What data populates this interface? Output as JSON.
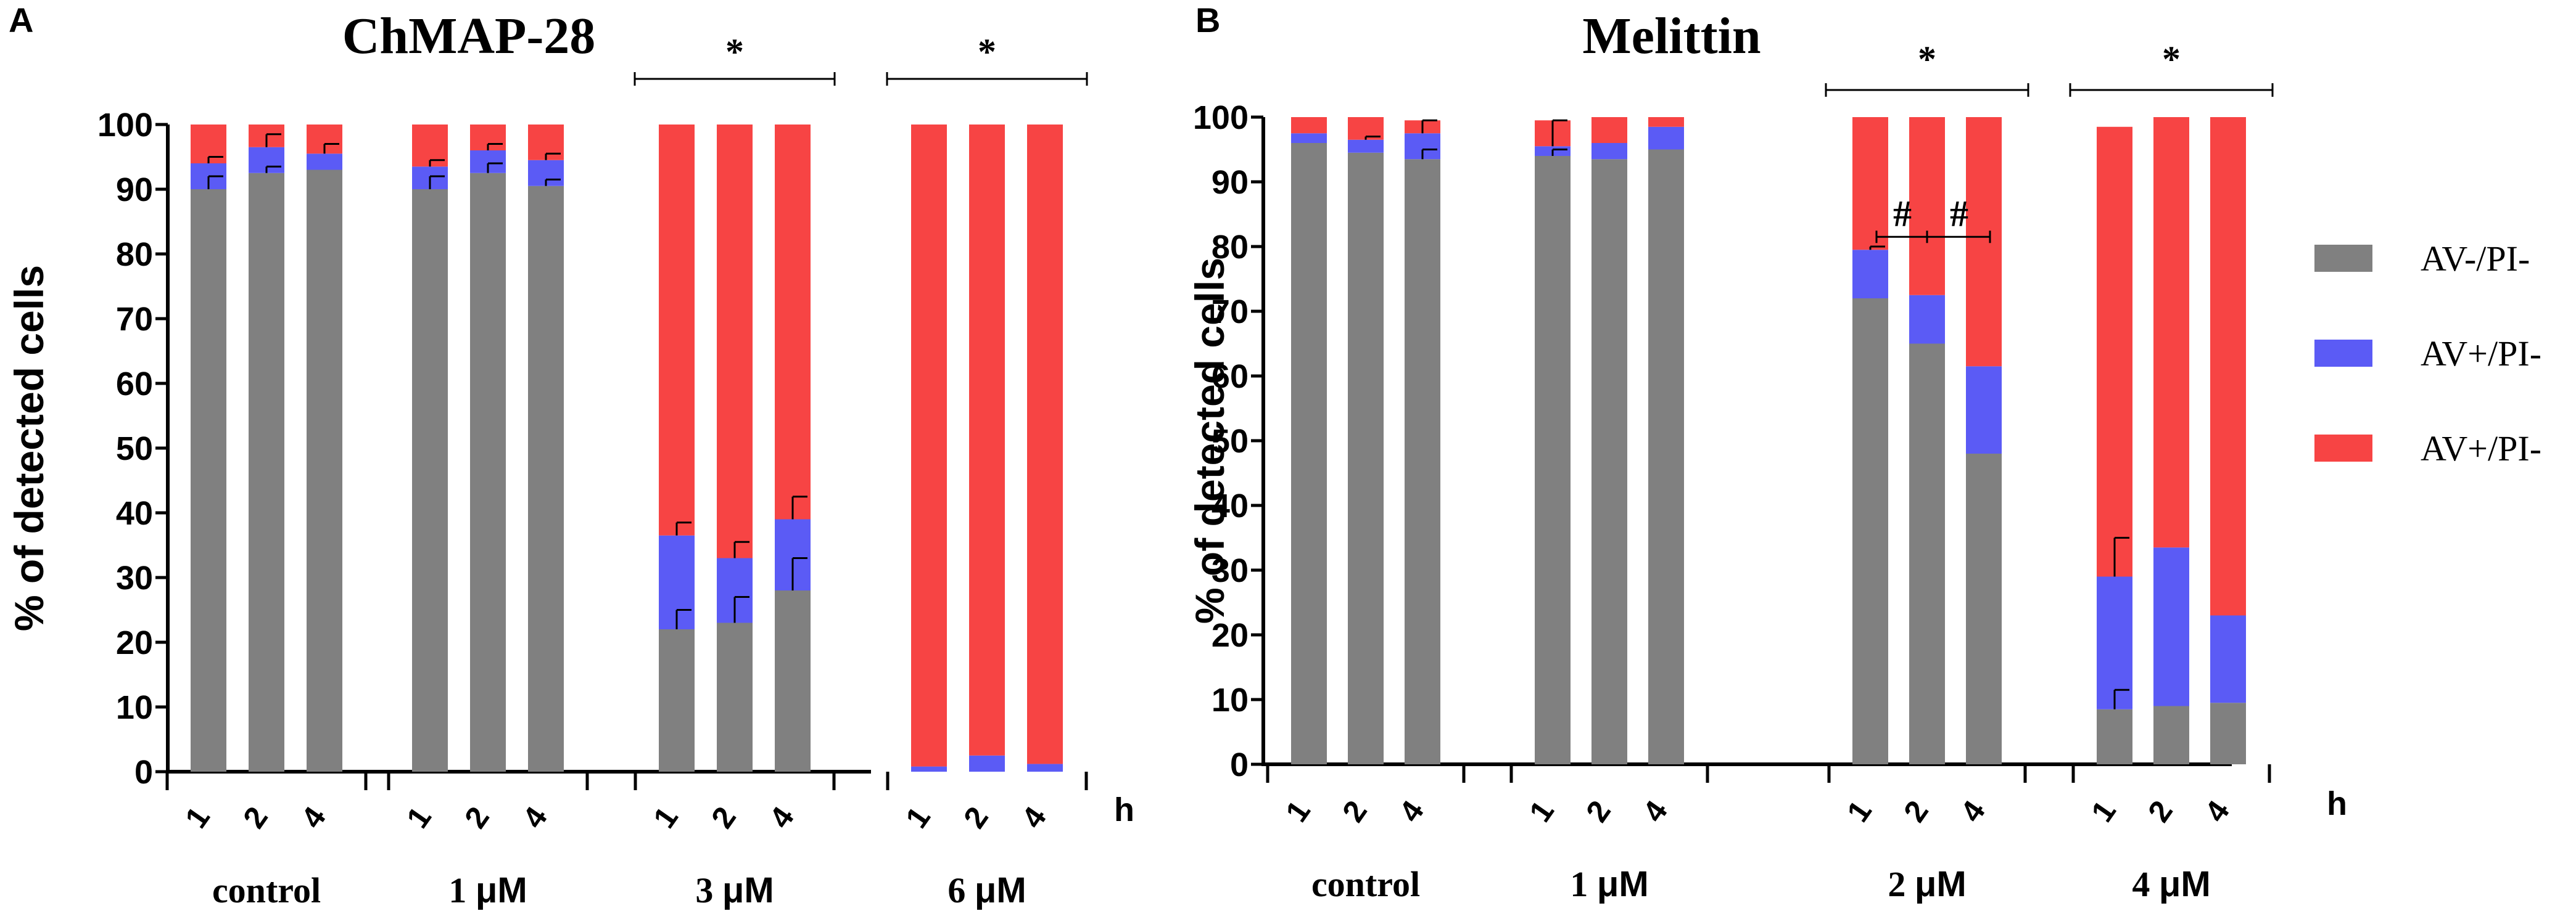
{
  "colors": {
    "viable": "#808080",
    "early": "#5b5bf5",
    "late": "#f74444",
    "ink": "#000000"
  },
  "legend": [
    {
      "label": "AV-/PI-",
      "color": "#808080"
    },
    {
      "label": "AV+/PI-",
      "color": "#5b5bf5"
    },
    {
      "label": "AV+/PI-",
      "color": "#f74444"
    }
  ],
  "chart_data": [
    {
      "type": "bar",
      "stacked": true,
      "panel_letter": "A",
      "title": "ChMAP-28",
      "ylabel": "% of detected cells",
      "xlabel": "h",
      "ylim": [
        0,
        100
      ],
      "yticks": [
        0,
        10,
        20,
        30,
        40,
        50,
        60,
        70,
        80,
        90,
        100
      ],
      "groups": [
        {
          "label": "control",
          "ticks": [
            "1",
            "2",
            "4"
          ],
          "sig": "",
          "bars": [
            {
              "segments": [
                90,
                4,
                6
              ],
              "errors": [
                92,
                95
              ]
            },
            {
              "segments": [
                92.5,
                4,
                3.5
              ],
              "errors": [
                93.5,
                98.5
              ]
            },
            {
              "segments": [
                93,
                2.5,
                4.5
              ],
              "errors": [
                null,
                97
              ]
            }
          ]
        },
        {
          "label": "1 μM",
          "ticks": [
            "1",
            "2",
            "4"
          ],
          "sig": "",
          "bars": [
            {
              "segments": [
                90,
                3.5,
                6.5
              ],
              "errors": [
                92,
                94.5
              ]
            },
            {
              "segments": [
                92.5,
                3.5,
                4
              ],
              "errors": [
                94,
                97
              ]
            },
            {
              "segments": [
                90.5,
                4,
                5.5
              ],
              "errors": [
                91.5,
                95.5
              ]
            }
          ]
        },
        {
          "label": "3 μM",
          "ticks": [
            "1",
            "2",
            "4"
          ],
          "sig": "*",
          "bars": [
            {
              "segments": [
                22,
                14.5,
                63.5
              ],
              "errors": [
                25,
                38.5
              ]
            },
            {
              "segments": [
                23,
                10,
                67
              ],
              "errors": [
                27,
                35.5
              ]
            },
            {
              "segments": [
                28,
                11,
                61
              ],
              "errors": [
                33,
                42.5
              ]
            }
          ]
        },
        {
          "label": "6 μM",
          "ticks": [
            "1",
            "2",
            "4"
          ],
          "sig": "*",
          "bars": [
            {
              "segments": [
                0,
                0.8,
                99.2
              ],
              "errors": []
            },
            {
              "segments": [
                0,
                2.5,
                97.5
              ],
              "errors": []
            },
            {
              "segments": [
                0,
                1.2,
                98.8
              ],
              "errors": []
            }
          ]
        }
      ]
    },
    {
      "type": "bar",
      "stacked": true,
      "panel_letter": "B",
      "title": "Melittin",
      "ylabel": "% of detected cells",
      "xlabel": "h",
      "ylim": [
        0,
        100
      ],
      "yticks": [
        0,
        10,
        20,
        30,
        40,
        50,
        60,
        70,
        80,
        90,
        100
      ],
      "hash_marks": [
        "#",
        "#"
      ],
      "groups": [
        {
          "label": "control",
          "ticks": [
            "1",
            "2",
            "4"
          ],
          "sig": "",
          "bars": [
            {
              "segments": [
                96,
                1.5,
                2.5
              ],
              "errors": [
                null,
                97.5
              ]
            },
            {
              "segments": [
                94.5,
                2,
                3.5
              ],
              "errors": [
                null,
                97
              ]
            },
            {
              "segments": [
                93.5,
                4,
                2
              ],
              "errors": [
                95,
                99.5
              ]
            }
          ]
        },
        {
          "label": "1 μM",
          "ticks": [
            "1",
            "2",
            "4"
          ],
          "sig": "",
          "bars": [
            {
              "segments": [
                94,
                1.5,
                4
              ],
              "errors": [
                95,
                99.5
              ]
            },
            {
              "segments": [
                93.5,
                2.5,
                4
              ],
              "errors": []
            },
            {
              "segments": [
                95,
                3.5,
                1.5
              ],
              "errors": []
            }
          ]
        },
        {
          "label": "2 μM",
          "ticks": [
            "1",
            "2",
            "4"
          ],
          "sig": "*",
          "bars": [
            {
              "segments": [
                72,
                7.5,
                20.5
              ],
              "errors": [
                null,
                80
              ]
            },
            {
              "segments": [
                65,
                7.5,
                27.5
              ],
              "errors": []
            },
            {
              "segments": [
                48,
                13.5,
                38.5
              ],
              "errors": []
            }
          ]
        },
        {
          "label": "4 μM",
          "ticks": [
            "1",
            "2",
            "4"
          ],
          "sig": "*",
          "bars": [
            {
              "segments": [
                8.5,
                20.5,
                69.5
              ],
              "errors": [
                11.5,
                35
              ]
            },
            {
              "segments": [
                9,
                24.5,
                66.5
              ],
              "errors": []
            },
            {
              "segments": [
                9.5,
                13.5,
                77
              ],
              "errors": []
            }
          ]
        }
      ]
    }
  ]
}
